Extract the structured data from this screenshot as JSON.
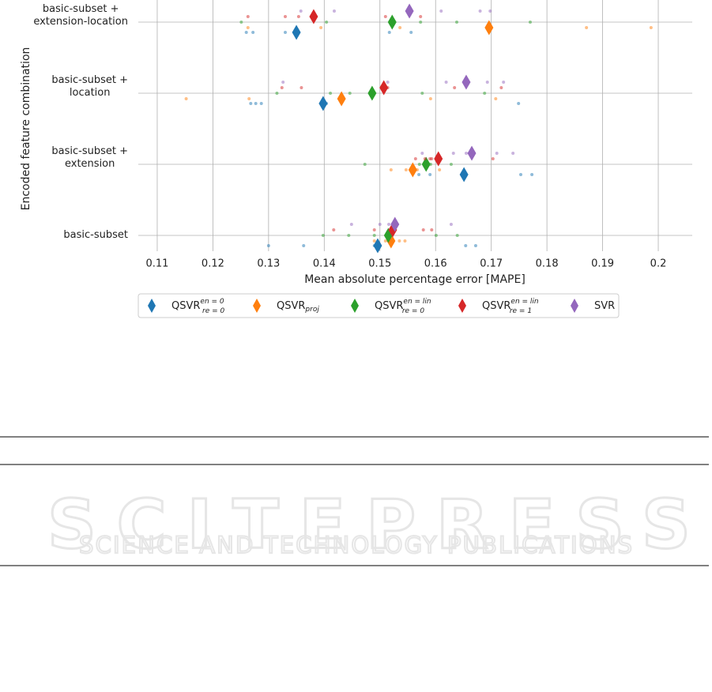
{
  "chart_data": {
    "type": "scatter",
    "xlabel": "Mean absolute percentage error [MAPE]",
    "ylabel": "Encoded feature combination",
    "categories": [
      "basic-subset",
      "basic-subset +\nextension",
      "basic-subset +\nlocation",
      "basic-subset +\nextension-location"
    ],
    "xlim": [
      0.1066,
      0.2061
    ],
    "xticks": [
      0.11,
      0.12,
      0.13,
      0.14,
      0.15,
      0.16,
      0.17,
      0.18,
      0.19,
      0.2
    ],
    "grid": true,
    "legend": "bottom",
    "series": [
      {
        "name": "QSVR",
        "sup": "en = 0",
        "sub": "re = 0",
        "color": "#1f77b4",
        "values": [
          0.1496,
          0.1651,
          0.1398,
          0.135
        ],
        "runs": [
          [
            0.13,
            0.1363,
            0.1654,
            0.1672,
            0.149
          ],
          [
            0.1753,
            0.1773,
            0.159,
            0.157,
            0.165
          ],
          [
            0.1268,
            0.1277,
            0.1287,
            0.1404,
            0.1749
          ],
          [
            0.126,
            0.1272,
            0.133,
            0.1517,
            0.1556
          ]
        ]
      },
      {
        "name": "QSVR",
        "sub": "proj",
        "color": "#ff7f0e",
        "values": [
          0.152,
          0.1559,
          0.1431,
          0.1696
        ],
        "runs": [
          [
            0.149,
            0.1535,
            0.151,
            0.152,
            0.1545
          ],
          [
            0.152,
            0.1547,
            0.1567,
            0.1607,
            0.156
          ],
          [
            0.1152,
            0.1265,
            0.1591,
            0.1708,
            0.1431
          ],
          [
            0.1263,
            0.1394,
            0.1536,
            0.1871,
            0.1987
          ]
        ]
      },
      {
        "name": "QSVR",
        "sup": "en = lin",
        "sub": "re = 0",
        "color": "#2ca02c",
        "values": [
          0.1515,
          0.1583,
          0.1486,
          0.1522
        ],
        "runs": [
          [
            0.1398,
            0.1444,
            0.149,
            0.1601,
            0.1639
          ],
          [
            0.1473,
            0.1571,
            0.1591,
            0.1628,
            0.1585
          ],
          [
            0.1315,
            0.1411,
            0.1446,
            0.1576,
            0.1688
          ],
          [
            0.1251,
            0.1404,
            0.1573,
            0.1638,
            0.177
          ]
        ]
      },
      {
        "name": "QSVR",
        "sup": "en = lin",
        "sub": "re = 1",
        "color": "#d62728",
        "values": [
          0.1523,
          0.1605,
          0.1507,
          0.1381
        ],
        "runs": [
          [
            0.1417,
            0.149,
            0.1578,
            0.1593,
            0.1523
          ],
          [
            0.1564,
            0.1581,
            0.1593,
            0.1703,
            0.159
          ],
          [
            0.1324,
            0.1359,
            0.1514,
            0.1634,
            0.1718
          ],
          [
            0.1263,
            0.133,
            0.1354,
            0.151,
            0.1573
          ]
        ]
      },
      {
        "name": "SVR",
        "color": "#9467bd",
        "values": [
          0.1527,
          0.1665,
          0.1655,
          0.1553
        ],
        "runs": [
          [
            0.1449,
            0.15,
            0.1516,
            0.1628,
            0.1527
          ],
          [
            0.1576,
            0.1632,
            0.171,
            0.1739,
            0.1655
          ],
          [
            0.1326,
            0.1514,
            0.1619,
            0.1693,
            0.1722
          ],
          [
            0.1358,
            0.1418,
            0.161,
            0.168,
            0.1698
          ]
        ]
      }
    ]
  },
  "watermark": {
    "title": "SCITEPRESS",
    "subtitle": "SCIENCE AND TECHNOLOGY PUBLICATIONS"
  }
}
